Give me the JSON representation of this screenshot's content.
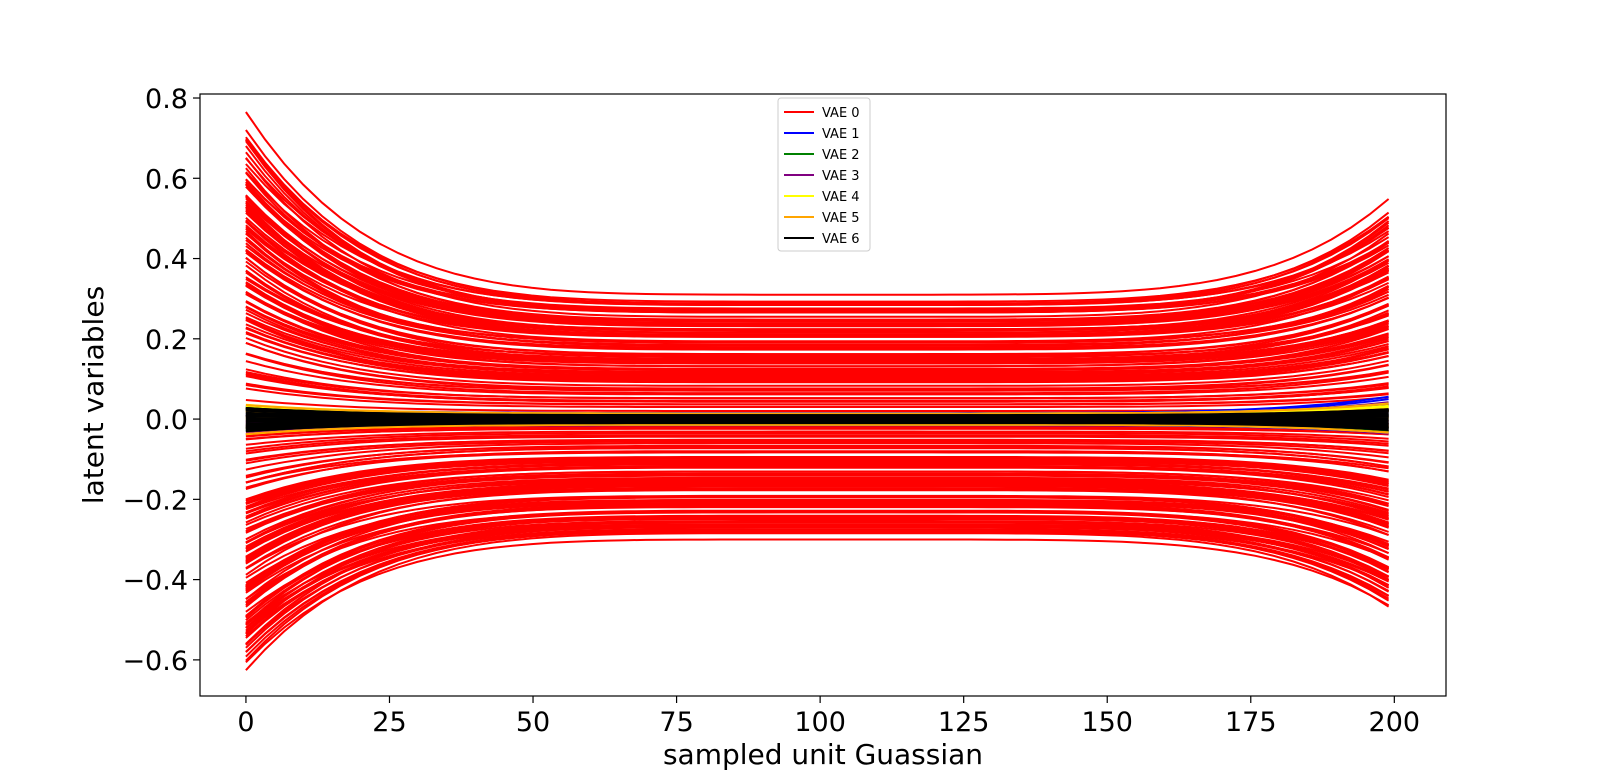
{
  "chart_data": {
    "type": "line",
    "title": "",
    "xlabel": "sampled unit Guassian",
    "ylabel": "latent variables",
    "xlim": [
      -8,
      209
    ],
    "ylim": [
      -0.69,
      0.81
    ],
    "grid": false,
    "legend_position": "top-center",
    "x_ticks": [
      {
        "value": 0,
        "label": "0"
      },
      {
        "value": 25,
        "label": "25"
      },
      {
        "value": 50,
        "label": "50"
      },
      {
        "value": 75,
        "label": "75"
      },
      {
        "value": 100,
        "label": "100"
      },
      {
        "value": 125,
        "label": "125"
      },
      {
        "value": 150,
        "label": "150"
      },
      {
        "value": 175,
        "label": "175"
      },
      {
        "value": 200,
        "label": "200"
      }
    ],
    "y_ticks": [
      {
        "value": 0.8,
        "label": "0.8"
      },
      {
        "value": 0.6,
        "label": "0.6"
      },
      {
        "value": 0.4,
        "label": "0.4"
      },
      {
        "value": 0.2,
        "label": "0.2"
      },
      {
        "value": 0.0,
        "label": "0.0"
      },
      {
        "value": -0.2,
        "label": "−0.2"
      },
      {
        "value": -0.4,
        "label": "−0.4"
      },
      {
        "value": -0.6,
        "label": "−0.6"
      }
    ],
    "x_range": [
      0,
      199
    ],
    "series": [
      {
        "name": "VAE 0",
        "color": "#ff0000",
        "line_count": 220,
        "start_max": 0.745,
        "mid_max": 0.31,
        "end_max": 0.65,
        "start_min": -0.625,
        "mid_min": -0.3,
        "end_min": -0.56
      },
      {
        "name": "VAE 1",
        "color": "#0000ff",
        "line_count": 10,
        "start_max": 0.03,
        "mid_max": 0.015,
        "end_max": 0.07,
        "start_min": -0.03,
        "mid_min": -0.015,
        "end_min": -0.05
      },
      {
        "name": "VAE 2",
        "color": "#008000",
        "line_count": 10,
        "start_max": 0.03,
        "mid_max": 0.012,
        "end_max": 0.05,
        "start_min": -0.03,
        "mid_min": -0.012,
        "end_min": -0.04
      },
      {
        "name": "VAE 3",
        "color": "#800080",
        "line_count": 10,
        "start_max": 0.03,
        "mid_max": 0.012,
        "end_max": 0.06,
        "start_min": -0.03,
        "mid_min": -0.012,
        "end_min": -0.045
      },
      {
        "name": "VAE 4",
        "color": "#ffff00",
        "line_count": 10,
        "start_max": 0.035,
        "mid_max": 0.014,
        "end_max": 0.05,
        "start_min": -0.035,
        "mid_min": -0.014,
        "end_min": -0.04
      },
      {
        "name": "VAE 5",
        "color": "#ffa500",
        "line_count": 10,
        "start_max": 0.035,
        "mid_max": 0.014,
        "end_max": 0.05,
        "start_min": -0.035,
        "mid_min": -0.014,
        "end_min": -0.04
      },
      {
        "name": "VAE 6",
        "color": "#000000",
        "line_count": 30,
        "start_max": 0.03,
        "mid_max": 0.01,
        "end_max": 0.035,
        "start_min": -0.03,
        "mid_min": -0.01,
        "end_min": -0.035
      }
    ]
  }
}
